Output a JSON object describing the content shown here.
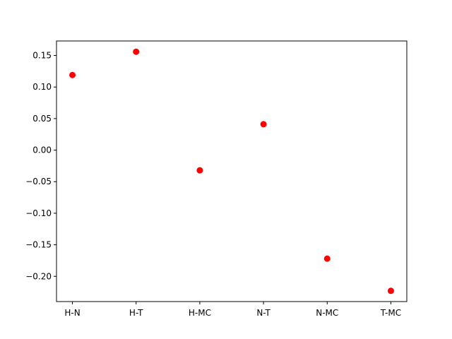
{
  "chart_data": {
    "type": "scatter",
    "title": "",
    "xlabel": "",
    "ylabel": "",
    "categories": [
      "H-N",
      "H-T",
      "H-MC",
      "N-T",
      "N-MC",
      "T-MC"
    ],
    "values": [
      0.119,
      0.156,
      -0.032,
      0.041,
      -0.172,
      -0.223
    ],
    "ylim": [
      -0.24,
      0.173
    ],
    "yticks": [
      0.15,
      0.1,
      0.05,
      0.0,
      -0.05,
      -0.1,
      -0.15,
      -0.2
    ],
    "ytick_labels": [
      "0.15",
      "0.10",
      "0.05",
      "0.00",
      "−0.05",
      "−0.10",
      "−0.15",
      "−0.20"
    ],
    "marker_color": "#ff0000",
    "grid": false,
    "legend": "none"
  }
}
